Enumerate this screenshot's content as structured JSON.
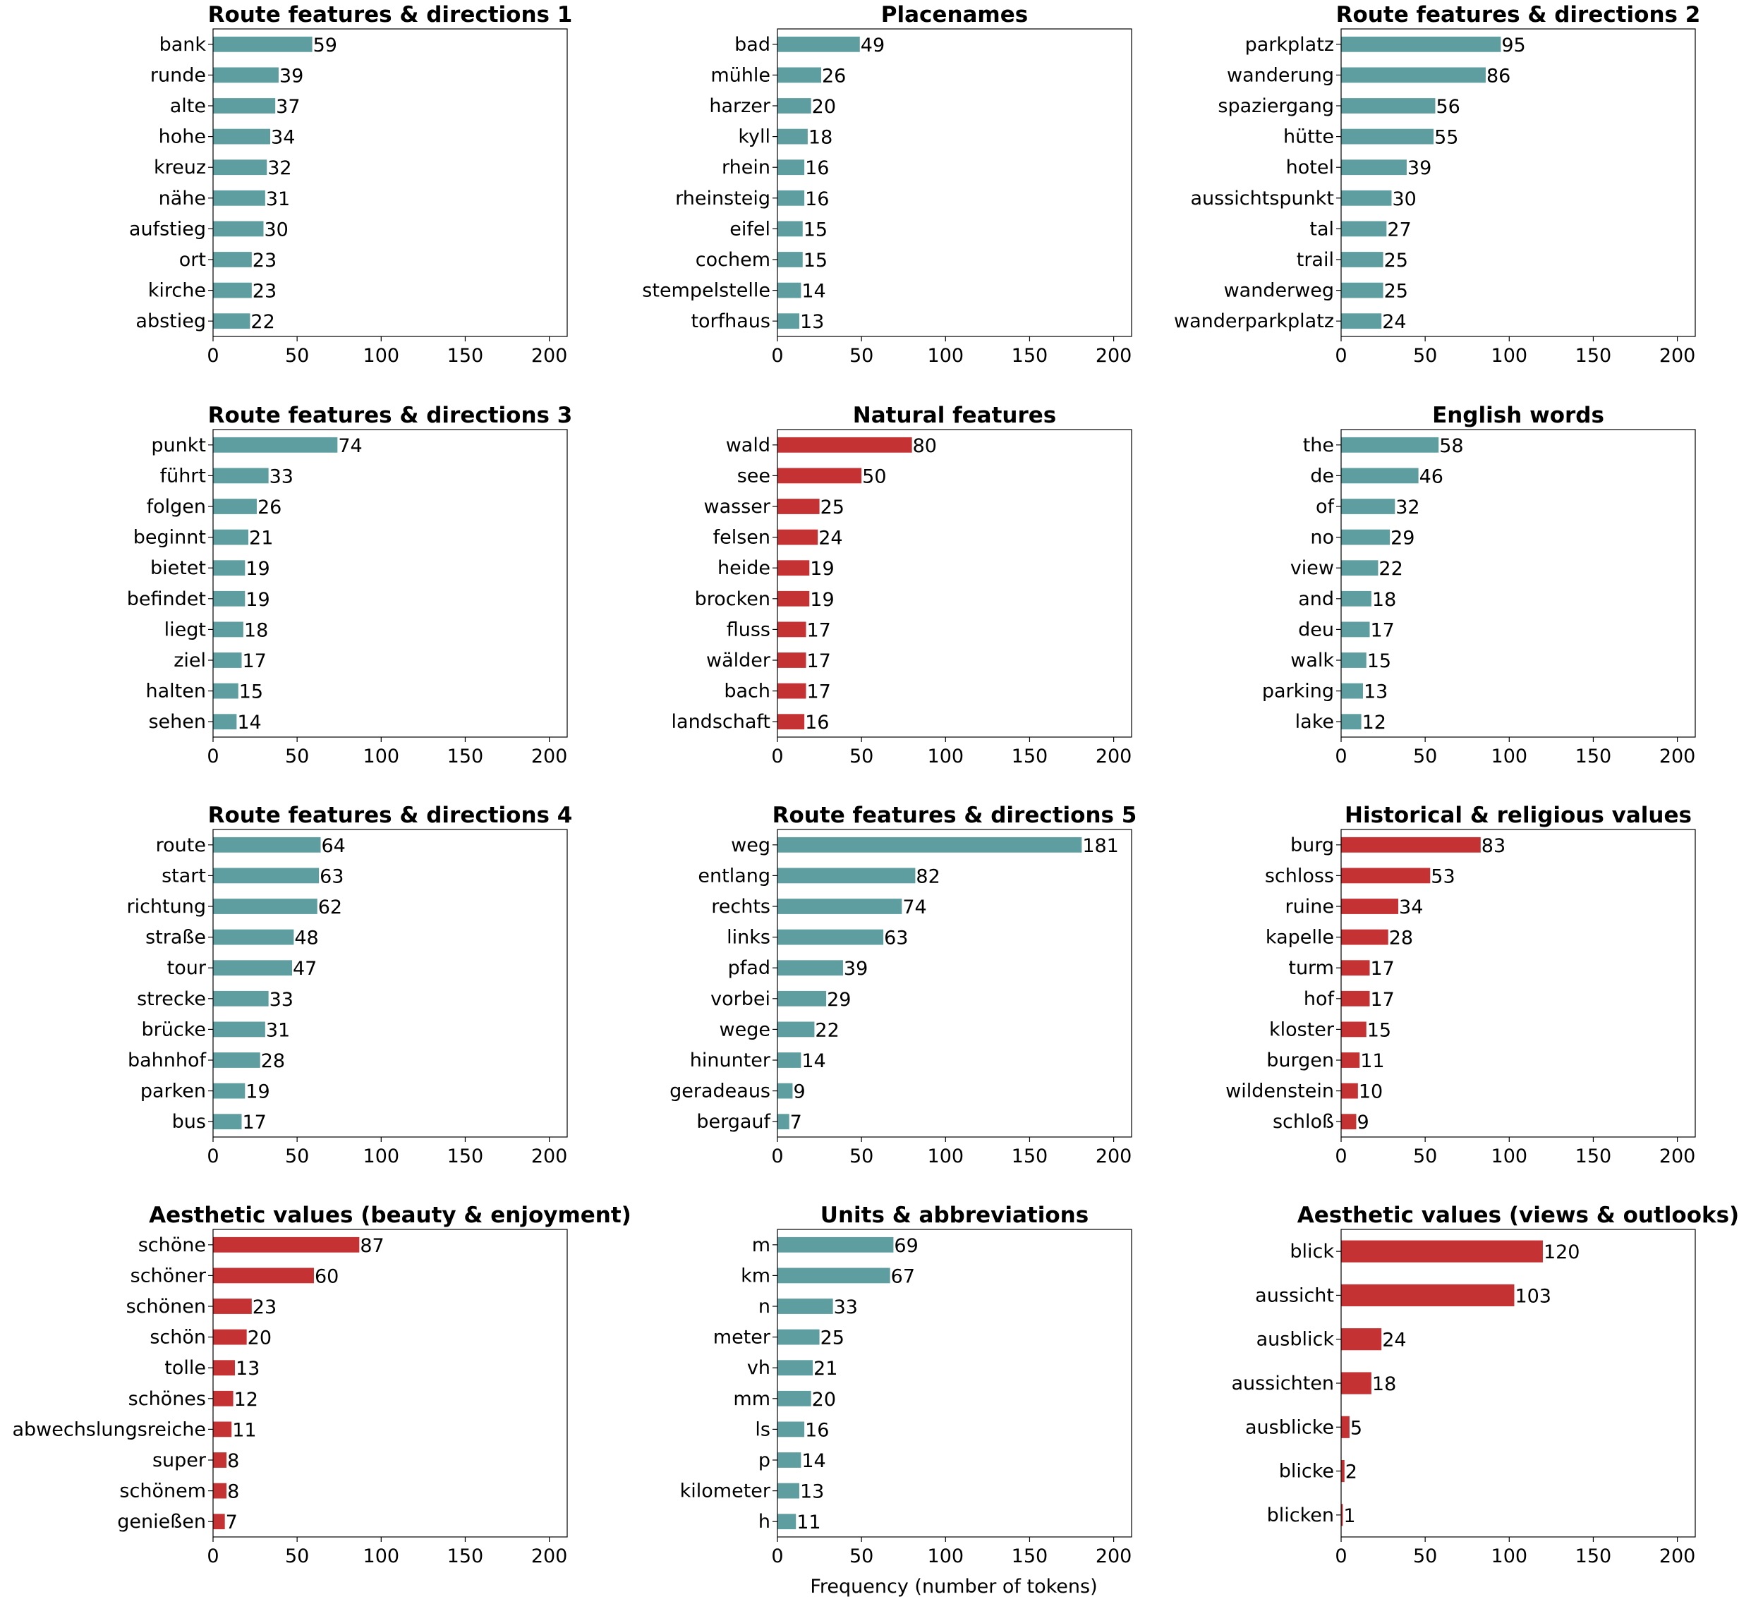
{
  "xlabel": "Frequency (number of tokens)",
  "colors": {
    "teal": "#5f9ea0",
    "red": "#c43234"
  },
  "chart_data": [
    {
      "type": "bar",
      "orientation": "horizontal",
      "title": "Route features & directions 1",
      "color": "#5f9ea0",
      "categories": [
        "bank",
        "runde",
        "alte",
        "hohe",
        "kreuz",
        "nähe",
        "aufstieg",
        "ort",
        "kirche",
        "abstieg"
      ],
      "values": [
        59,
        39,
        37,
        34,
        32,
        31,
        30,
        23,
        23,
        22
      ],
      "xlim": [
        0,
        210
      ],
      "xticks": [
        0,
        50,
        100,
        150,
        200
      ]
    },
    {
      "type": "bar",
      "orientation": "horizontal",
      "title": "Placenames",
      "color": "#5f9ea0",
      "categories": [
        "bad",
        "mühle",
        "harzer",
        "kyll",
        "rhein",
        "rheinsteig",
        "eifel",
        "cochem",
        "stempelstelle",
        "torfhaus"
      ],
      "values": [
        49,
        26,
        20,
        18,
        16,
        16,
        15,
        15,
        14,
        13
      ],
      "xlim": [
        0,
        210
      ],
      "xticks": [
        0,
        50,
        100,
        150,
        200
      ]
    },
    {
      "type": "bar",
      "orientation": "horizontal",
      "title": "Route features & directions 2",
      "color": "#5f9ea0",
      "categories": [
        "parkplatz",
        "wanderung",
        "spaziergang",
        "hütte",
        "hotel",
        "aussichtspunkt",
        "tal",
        "trail",
        "wanderweg",
        "wanderparkplatz"
      ],
      "values": [
        95,
        86,
        56,
        55,
        39,
        30,
        27,
        25,
        25,
        24
      ],
      "xlim": [
        0,
        210
      ],
      "xticks": [
        0,
        50,
        100,
        150,
        200
      ]
    },
    {
      "type": "bar",
      "orientation": "horizontal",
      "title": "Route features & directions 3",
      "color": "#5f9ea0",
      "categories": [
        "punkt",
        "führt",
        "folgen",
        "beginnt",
        "bietet",
        "befindet",
        "liegt",
        "ziel",
        "halten",
        "sehen"
      ],
      "values": [
        74,
        33,
        26,
        21,
        19,
        19,
        18,
        17,
        15,
        14
      ],
      "xlim": [
        0,
        210
      ],
      "xticks": [
        0,
        50,
        100,
        150,
        200
      ]
    },
    {
      "type": "bar",
      "orientation": "horizontal",
      "title": "Natural features",
      "color": "#c43234",
      "categories": [
        "wald",
        "see",
        "wasser",
        "felsen",
        "heide",
        "brocken",
        "fluss",
        "wälder",
        "bach",
        "landschaft"
      ],
      "values": [
        80,
        50,
        25,
        24,
        19,
        19,
        17,
        17,
        17,
        16
      ],
      "xlim": [
        0,
        210
      ],
      "xticks": [
        0,
        50,
        100,
        150,
        200
      ]
    },
    {
      "type": "bar",
      "orientation": "horizontal",
      "title": "English words",
      "color": "#5f9ea0",
      "categories": [
        "the",
        "de",
        "of",
        "no",
        "view",
        "and",
        "deu",
        "walk",
        "parking",
        "lake"
      ],
      "values": [
        58,
        46,
        32,
        29,
        22,
        18,
        17,
        15,
        13,
        12
      ],
      "xlim": [
        0,
        210
      ],
      "xticks": [
        0,
        50,
        100,
        150,
        200
      ]
    },
    {
      "type": "bar",
      "orientation": "horizontal",
      "title": "Route features & directions 4",
      "color": "#5f9ea0",
      "categories": [
        "route",
        "start",
        "richtung",
        "straße",
        "tour",
        "strecke",
        "brücke",
        "bahnhof",
        "parken",
        "bus"
      ],
      "values": [
        64,
        63,
        62,
        48,
        47,
        33,
        31,
        28,
        19,
        17
      ],
      "xlim": [
        0,
        210
      ],
      "xticks": [
        0,
        50,
        100,
        150,
        200
      ]
    },
    {
      "type": "bar",
      "orientation": "horizontal",
      "title": "Route features & directions 5",
      "color": "#5f9ea0",
      "categories": [
        "weg",
        "entlang",
        "rechts",
        "links",
        "pfad",
        "vorbei",
        "wege",
        "hinunter",
        "geradeaus",
        "bergauf"
      ],
      "values": [
        181,
        82,
        74,
        63,
        39,
        29,
        22,
        14,
        9,
        7
      ],
      "xlim": [
        0,
        210
      ],
      "xticks": [
        0,
        50,
        100,
        150,
        200
      ]
    },
    {
      "type": "bar",
      "orientation": "horizontal",
      "title": "Historical & religious values",
      "color": "#c43234",
      "categories": [
        "burg",
        "schloss",
        "ruine",
        "kapelle",
        "turm",
        "hof",
        "kloster",
        "burgen",
        "wildenstein",
        "schloß"
      ],
      "values": [
        83,
        53,
        34,
        28,
        17,
        17,
        15,
        11,
        10,
        9
      ],
      "xlim": [
        0,
        210
      ],
      "xticks": [
        0,
        50,
        100,
        150,
        200
      ]
    },
    {
      "type": "bar",
      "orientation": "horizontal",
      "title": "Aesthetic values (beauty & enjoyment)",
      "color": "#c43234",
      "categories": [
        "schöne",
        "schöner",
        "schönen",
        "schön",
        "tolle",
        "schönes",
        "abwechslungsreiche",
        "super",
        "schönem",
        "genießen"
      ],
      "values": [
        87,
        60,
        23,
        20,
        13,
        12,
        11,
        8,
        8,
        7
      ],
      "xlim": [
        0,
        210
      ],
      "xticks": [
        0,
        50,
        100,
        150,
        200
      ]
    },
    {
      "type": "bar",
      "orientation": "horizontal",
      "title": "Units & abbreviations",
      "color": "#5f9ea0",
      "categories": [
        "m",
        "km",
        "n",
        "meter",
        "vh",
        "mm",
        "ls",
        "p",
        "kilometer",
        "h"
      ],
      "values": [
        69,
        67,
        33,
        25,
        21,
        20,
        16,
        14,
        13,
        11
      ],
      "xlim": [
        0,
        210
      ],
      "xticks": [
        0,
        50,
        100,
        150,
        200
      ]
    },
    {
      "type": "bar",
      "orientation": "horizontal",
      "title": "Aesthetic values (views & outlooks)",
      "color": "#c43234",
      "categories": [
        "blick",
        "aussicht",
        "ausblick",
        "aussichten",
        "ausblicke",
        "blicke",
        "blicken"
      ],
      "values": [
        120,
        103,
        24,
        18,
        5,
        2,
        1
      ],
      "xlim": [
        0,
        210
      ],
      "xticks": [
        0,
        50,
        100,
        150,
        200
      ]
    }
  ]
}
